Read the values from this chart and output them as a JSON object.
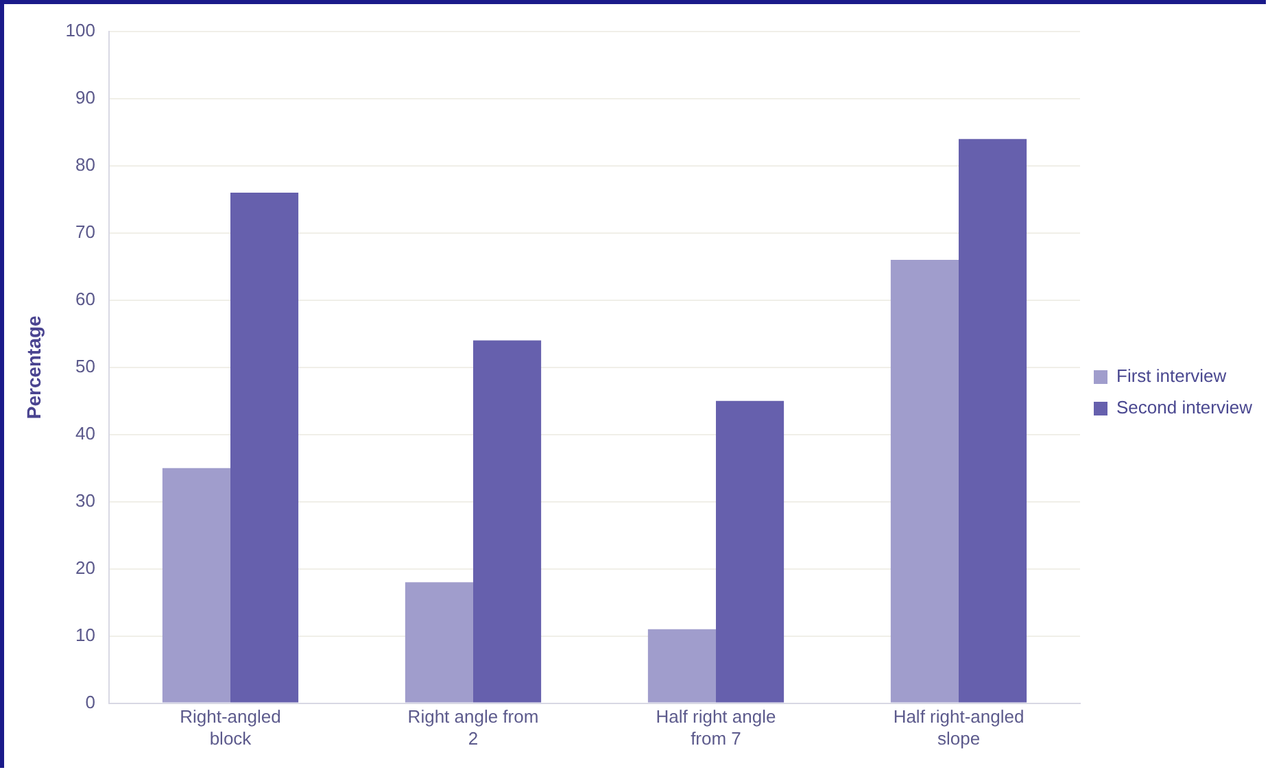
{
  "chart_data": {
    "type": "bar",
    "ylabel": "Percentage",
    "categories": [
      "Right-angled block",
      "Right angle from 2",
      "Half right angle from 7",
      "Half right-angled slope"
    ],
    "series": [
      {
        "name": "First interview",
        "color": "#a09dcc",
        "values": [
          35,
          18,
          11,
          66
        ]
      },
      {
        "name": "Second interview",
        "color": "#6660ad",
        "values": [
          76,
          54,
          45,
          84
        ]
      }
    ],
    "ylim": [
      0,
      100
    ],
    "yticks": [
      0,
      10,
      20,
      30,
      40,
      50,
      60,
      70,
      80,
      90,
      100
    ],
    "grid": "y",
    "legend": "right"
  }
}
